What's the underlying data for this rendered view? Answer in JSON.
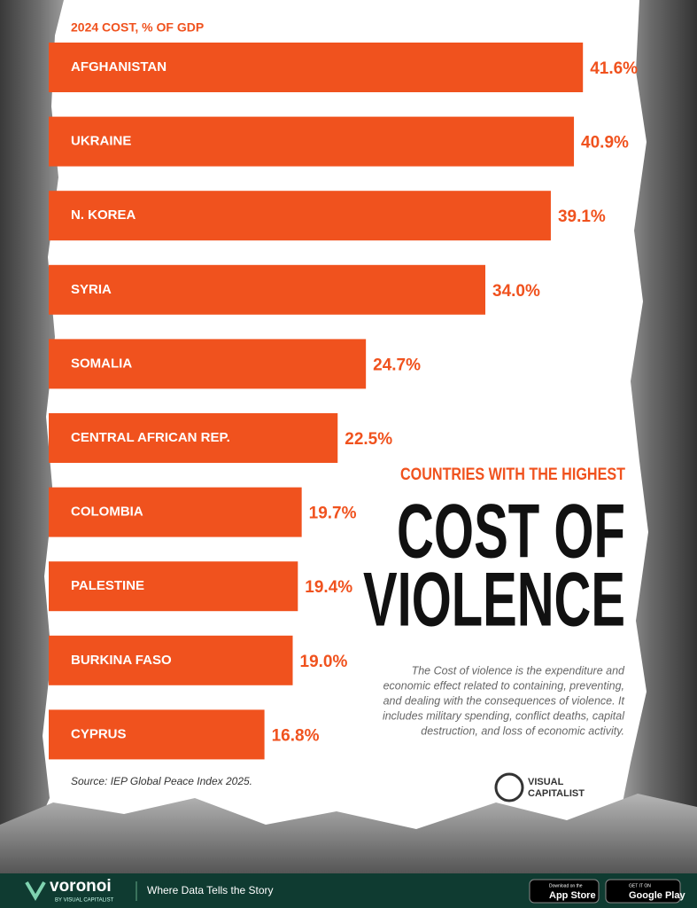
{
  "chart_data": {
    "type": "bar",
    "orientation": "horizontal",
    "axis_label": "2024 COST, % OF GDP",
    "supertitle": "COUNTRIES WITH THE HIGHEST",
    "title": [
      "COST OF",
      "VIOLENCE"
    ],
    "description": [
      "The Cost of violence is the expenditure and",
      "economic effect related to containing, preventing,",
      "and dealing with the consequences of violence. It",
      "includes military spending, conflict deaths, capital",
      "destruction, and loss of economic activity."
    ],
    "source": "Source: IEP Global Peace Index 2025.",
    "categories": [
      "AFGHANISTAN",
      "UKRAINE",
      "N. KOREA",
      "SYRIA",
      "SOMALIA",
      "CENTRAL AFRICAN REP.",
      "COLOMBIA",
      "PALESTINE",
      "BURKINA FASO",
      "CYPRUS"
    ],
    "values": [
      41.6,
      40.9,
      39.1,
      34.0,
      24.7,
      22.5,
      19.7,
      19.4,
      19.0,
      16.8
    ],
    "value_labels": [
      "41.6%",
      "40.9%",
      "39.1%",
      "34.0%",
      "24.7%",
      "22.5%",
      "19.7%",
      "19.4%",
      "19.0%",
      "16.8%"
    ],
    "color": "#f0521e"
  },
  "logo": [
    "VISUAL",
    "CAPITALIST"
  ],
  "footer": {
    "brand": "voronoi",
    "brand_sub": "BY VISUAL CAPITALIST",
    "tagline": "Where Data Tells the Story",
    "app_store": [
      "Download on the",
      "App Store"
    ],
    "google_play": [
      "GET IT ON",
      "Google Play"
    ]
  }
}
